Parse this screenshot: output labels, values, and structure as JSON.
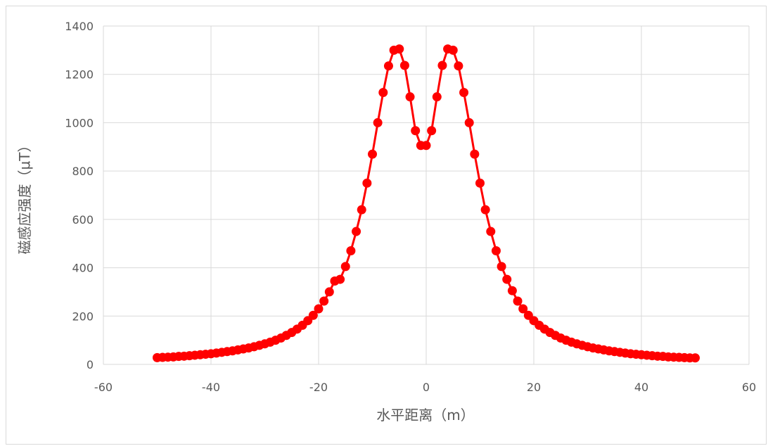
{
  "chart_data": {
    "type": "scatter",
    "title": "",
    "xlabel": "水平距离（m）",
    "ylabel": "磁感应强度（μT）",
    "xlim": [
      -60,
      60
    ],
    "ylim": [
      0,
      1400
    ],
    "xticks": [
      -60,
      -40,
      -20,
      0,
      20,
      40,
      60
    ],
    "yticks": [
      0,
      200,
      400,
      600,
      800,
      1000,
      1200,
      1400
    ],
    "grid": true,
    "legend": "none",
    "series_color": "#ff0000",
    "series": [
      {
        "x": [
          -50,
          -49,
          -48,
          -47,
          -46,
          -45,
          -44,
          -43,
          -42,
          -41,
          -40,
          -39,
          -38,
          -37,
          -36,
          -35,
          -34,
          -33,
          -32,
          -31,
          -30,
          -29,
          -28,
          -27,
          -26,
          -25,
          -24,
          -23,
          -22,
          -21,
          -20,
          -19,
          -18,
          -17,
          -16,
          -15,
          -14,
          -13,
          -12,
          -11,
          -10,
          -9,
          -8,
          -7,
          -6,
          -5,
          -4,
          -3,
          -2,
          -1,
          0,
          1,
          2,
          3,
          4,
          5,
          6,
          7,
          8,
          9,
          10,
          11,
          12,
          13,
          14,
          15,
          16,
          17,
          18,
          19,
          20,
          21,
          22,
          23,
          24,
          25,
          26,
          27,
          28,
          29,
          30,
          31,
          32,
          33,
          34,
          35,
          36,
          37,
          38,
          39,
          40,
          41,
          42,
          43,
          44,
          45,
          46,
          47,
          48,
          49,
          50
        ],
        "y": [
          28,
          29,
          30,
          31,
          33,
          34,
          36,
          38,
          40,
          42,
          44,
          47,
          50,
          53,
          56,
          60,
          64,
          68,
          73,
          79,
          85,
          92,
          100,
          109,
          120,
          132,
          146,
          162,
          181,
          203,
          230,
          262,
          300,
          345,
          352,
          405,
          470,
          550,
          640,
          750,
          870,
          1000,
          1125,
          1235,
          1300,
          1305,
          1237,
          1107,
          967,
          906,
          906,
          967,
          1107,
          1237,
          1305,
          1300,
          1235,
          1125,
          1000,
          870,
          750,
          640,
          550,
          470,
          405,
          352,
          305,
          262,
          230,
          203,
          181,
          162,
          146,
          132,
          120,
          109,
          100,
          92,
          85,
          79,
          73,
          68,
          64,
          60,
          56,
          53,
          50,
          47,
          44,
          42,
          40,
          38,
          36,
          34,
          33,
          31,
          30,
          29,
          28,
          27,
          27
        ]
      }
    ]
  }
}
